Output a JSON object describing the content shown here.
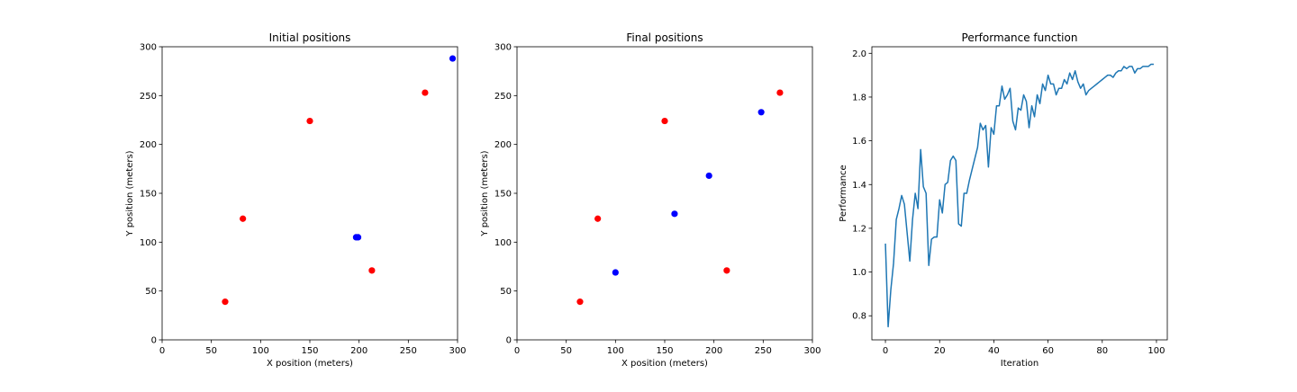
{
  "chart_data": [
    {
      "type": "scatter",
      "title": "Initial positions",
      "xlabel": "X position (meters)",
      "ylabel": "Y position (meters)",
      "xlim": [
        0,
        300
      ],
      "ylim": [
        0,
        300
      ],
      "xticks": [
        0,
        50,
        100,
        150,
        200,
        250,
        300
      ],
      "yticks": [
        0,
        50,
        100,
        150,
        200,
        250,
        300
      ],
      "grid": false,
      "series": [
        {
          "color": "#ff0000",
          "x": [
            64,
            82,
            150,
            213,
            267
          ],
          "y": [
            39,
            124,
            224,
            71,
            253
          ]
        },
        {
          "color": "#0000ff",
          "x": [
            197,
            199,
            295
          ],
          "y": [
            105,
            105,
            288
          ]
        }
      ]
    },
    {
      "type": "scatter",
      "title": "Final positions",
      "xlabel": "X position (meters)",
      "ylabel": "Y position (meters)",
      "xlim": [
        0,
        300
      ],
      "ylim": [
        0,
        300
      ],
      "xticks": [
        0,
        50,
        100,
        150,
        200,
        250,
        300
      ],
      "yticks": [
        0,
        50,
        100,
        150,
        200,
        250,
        300
      ],
      "grid": false,
      "series": [
        {
          "color": "#ff0000",
          "x": [
            64,
            82,
            150,
            213,
            267
          ],
          "y": [
            39,
            124,
            224,
            71,
            253
          ]
        },
        {
          "color": "#0000ff",
          "x": [
            100,
            160,
            195,
            248
          ],
          "y": [
            69,
            129,
            168,
            233
          ]
        }
      ]
    },
    {
      "type": "line",
      "title": "Performance function",
      "xlabel": "Iteration",
      "ylabel": "Performance",
      "xlim": [
        -5,
        104
      ],
      "ylim": [
        0.69,
        2.03
      ],
      "xticks": [
        0,
        20,
        40,
        60,
        80,
        100
      ],
      "yticks": [
        0.8,
        1.0,
        1.2,
        1.4,
        1.6,
        1.8,
        2.0
      ],
      "ytick_labels": [
        "0.8",
        "1.0",
        "1.2",
        "1.4",
        "1.6",
        "1.8",
        "2.0"
      ],
      "grid": false,
      "series": [
        {
          "color": "#1f77b4",
          "x": [
            0,
            1,
            2,
            3,
            4,
            5,
            6,
            7,
            8,
            9,
            10,
            11,
            12,
            13,
            14,
            15,
            16,
            17,
            18,
            19,
            20,
            21,
            22,
            23,
            24,
            25,
            26,
            27,
            28,
            29,
            30,
            31,
            32,
            33,
            34,
            35,
            36,
            37,
            38,
            39,
            40,
            41,
            42,
            43,
            44,
            45,
            46,
            47,
            48,
            49,
            50,
            51,
            52,
            53,
            54,
            55,
            56,
            57,
            58,
            59,
            60,
            61,
            62,
            63,
            64,
            65,
            66,
            67,
            68,
            69,
            70,
            71,
            72,
            73,
            74,
            75,
            76,
            77,
            78,
            79,
            80,
            81,
            82,
            83,
            84,
            85,
            86,
            87,
            88,
            89,
            90,
            91,
            92,
            93,
            94,
            95,
            96,
            97,
            98,
            99
          ],
          "y": [
            1.13,
            0.75,
            0.92,
            1.04,
            1.24,
            1.29,
            1.35,
            1.31,
            1.18,
            1.05,
            1.24,
            1.36,
            1.29,
            1.56,
            1.39,
            1.36,
            1.03,
            1.15,
            1.16,
            1.16,
            1.33,
            1.27,
            1.4,
            1.41,
            1.51,
            1.53,
            1.51,
            1.22,
            1.21,
            1.36,
            1.36,
            1.42,
            1.47,
            1.52,
            1.57,
            1.68,
            1.65,
            1.67,
            1.48,
            1.66,
            1.63,
            1.76,
            1.76,
            1.85,
            1.79,
            1.81,
            1.84,
            1.69,
            1.65,
            1.75,
            1.74,
            1.81,
            1.78,
            1.66,
            1.76,
            1.71,
            1.81,
            1.77,
            1.86,
            1.83,
            1.9,
            1.86,
            1.86,
            1.81,
            1.84,
            1.84,
            1.88,
            1.86,
            1.91,
            1.88,
            1.92,
            1.87,
            1.84,
            1.86,
            1.81,
            1.83,
            1.84,
            1.85,
            1.86,
            1.87,
            1.88,
            1.89,
            1.9,
            1.9,
            1.89,
            1.91,
            1.92,
            1.92,
            1.94,
            1.93,
            1.94,
            1.94,
            1.91,
            1.93,
            1.93,
            1.94,
            1.94,
            1.94,
            1.95,
            1.95
          ]
        }
      ]
    }
  ]
}
